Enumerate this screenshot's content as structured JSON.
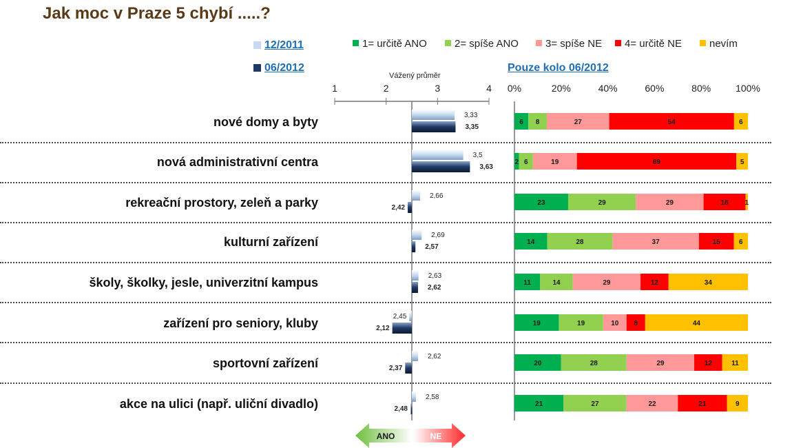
{
  "title": "Jak moc v Praze 5 chybí .....?",
  "waves": {
    "w1": {
      "label": "12/2011",
      "color": "#c6d9f1"
    },
    "w2": {
      "label": "06/2012",
      "color": "#1f3864"
    }
  },
  "legend": [
    {
      "label": "1= určitě ANO",
      "color": "#00b050"
    },
    {
      "label": "2= spíše ANO",
      "color": "#92d050"
    },
    {
      "label": "3= spíše NE",
      "color": "#ff9999"
    },
    {
      "label": "4= určitě NE",
      "color": "#ff0000"
    },
    {
      "label": "nevím",
      "color": "#ffc000"
    }
  ],
  "arrows": {
    "ano": "ANO",
    "ne": "NE"
  },
  "chart_data": [
    {
      "type": "bar",
      "title": "Vážený průměr",
      "xlim": [
        1,
        4
      ],
      "ticks": [
        "1",
        "2",
        "3",
        "4"
      ],
      "reference": 2.5,
      "categories": [
        "nové domy a byty",
        "nová administrativní centra",
        "rekreační prostory, zeleň a parky",
        "kulturní zařízení",
        "školy, školky, jesle, univerzitní kampus",
        "zařízení pro seniory, kluby",
        "sportovní zařízení",
        "akce na ulici (např. uliční divadlo)"
      ],
      "series": [
        {
          "name": "12/2011",
          "values": [
            3.33,
            3.5,
            2.66,
            2.69,
            2.63,
            2.45,
            2.62,
            2.58
          ],
          "labels": [
            "3,33",
            "3,5",
            "2,66",
            "2,69",
            "2,63",
            "2,45",
            "2,62",
            "2,58"
          ]
        },
        {
          "name": "06/2012",
          "values": [
            3.35,
            3.63,
            2.42,
            2.57,
            2.62,
            2.12,
            2.37,
            2.48
          ],
          "labels": [
            "3,35",
            "3,63",
            "2,42",
            "2,57",
            "2,62",
            "2,12",
            "2,37",
            "2,48"
          ]
        }
      ]
    },
    {
      "type": "bar",
      "stacked": true,
      "percent": true,
      "title": "Pouze kolo 06/2012",
      "ticks": [
        "0%",
        "20%",
        "40%",
        "60%",
        "80%",
        "100%"
      ],
      "categories": [
        "nové domy a byty",
        "nová administrativní centra",
        "rekreační prostory, zeleň a parky",
        "kulturní zařízení",
        "školy, školky, jesle, univerzitní kampus",
        "zařízení pro seniory, kluby",
        "sportovní zařízení",
        "akce na ulici (např. uliční divadlo)"
      ],
      "series": [
        {
          "name": "1= určitě ANO",
          "values": [
            6,
            2,
            23,
            14,
            11,
            19,
            20,
            21
          ]
        },
        {
          "name": "2= spíše ANO",
          "values": [
            8,
            6,
            29,
            28,
            14,
            19,
            28,
            27
          ]
        },
        {
          "name": "3= spíše NE",
          "values": [
            27,
            19,
            29,
            37,
            29,
            10,
            29,
            22
          ]
        },
        {
          "name": "4= určitě NE",
          "values": [
            54,
            69,
            18,
            15,
            12,
            8,
            12,
            21
          ]
        },
        {
          "name": "nevím",
          "values": [
            6,
            5,
            1,
            6,
            34,
            44,
            11,
            9
          ]
        }
      ]
    }
  ]
}
